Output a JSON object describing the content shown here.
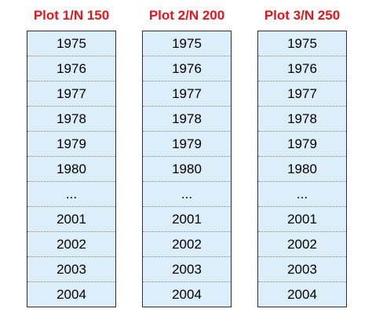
{
  "plots": [
    {
      "title": "Plot 1/N 150",
      "years": [
        "1975",
        "1976",
        "1977",
        "1978",
        "1979",
        "1980",
        "...",
        "2001",
        "2002",
        "2003",
        "2004"
      ]
    },
    {
      "title": "Plot 2/N 200",
      "years": [
        "1975",
        "1976",
        "1977",
        "1978",
        "1979",
        "1980",
        "...",
        "2001",
        "2002",
        "2003",
        "2004"
      ]
    },
    {
      "title": "Plot 3/N 250",
      "years": [
        "1975",
        "1976",
        "1977",
        "1978",
        "1979",
        "1980",
        "...",
        "2001",
        "2002",
        "2003",
        "2004"
      ]
    }
  ],
  "colors": {
    "title": "#e8141b",
    "cell_fill": "#dceefa",
    "border": "#2f2f2f"
  }
}
